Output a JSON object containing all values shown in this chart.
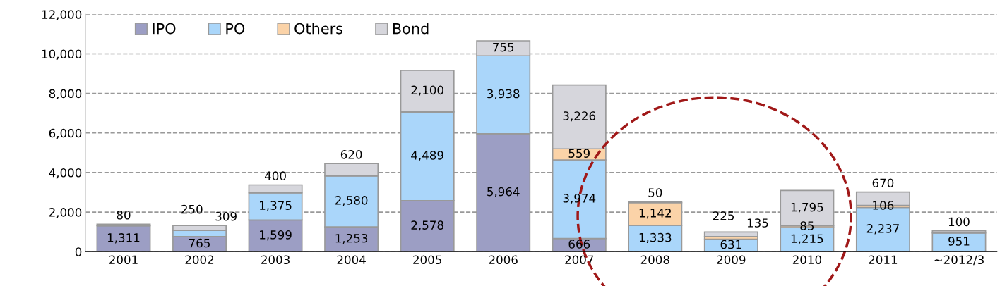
{
  "chart_data": {
    "type": "bar",
    "stacked": true,
    "categories": [
      "2001",
      "2002",
      "2003",
      "2004",
      "2005",
      "2006",
      "2007",
      "2008",
      "2009",
      "2010",
      "2011",
      "~2012/3"
    ],
    "series": [
      {
        "name": "IPO",
        "color": "#9c9ec4",
        "values": [
          1311,
          765,
          1599,
          1253,
          2578,
          5964,
          666,
          0,
          0,
          0,
          0,
          0
        ],
        "value_labels": [
          "1,311",
          "765",
          "1,599",
          "1,253",
          "2,578",
          "5,964",
          "666",
          null,
          null,
          null,
          null,
          null
        ]
      },
      {
        "name": "PO",
        "color": "#aad6fa",
        "values": [
          0,
          309,
          1375,
          2580,
          4489,
          3938,
          3974,
          1333,
          631,
          1215,
          2237,
          951
        ],
        "value_labels": [
          null,
          "309",
          "1,375",
          "2,580",
          "4,489",
          "3,938",
          "3,974",
          "1,333",
          "631",
          "1,215",
          "2,237",
          "951"
        ]
      },
      {
        "name": "Others",
        "color": "#fbd3a8",
        "values": [
          0,
          0,
          0,
          0,
          0,
          0,
          559,
          1142,
          135,
          85,
          106,
          0
        ],
        "value_labels": [
          null,
          null,
          null,
          null,
          null,
          null,
          "559",
          "1,142",
          "135",
          "85",
          "106",
          null
        ]
      },
      {
        "name": "Bond",
        "color": "#d6d6dc",
        "values": [
          80,
          250,
          400,
          620,
          2100,
          755,
          3226,
          50,
          225,
          1795,
          670,
          100
        ],
        "value_labels": [
          "80",
          "250",
          "400",
          "620",
          "2,100",
          "755",
          "3,226",
          "50",
          "225",
          "1,795",
          "670",
          "100"
        ]
      }
    ],
    "ylim": [
      0,
      12000
    ],
    "yticks": [
      {
        "value": 0,
        "label": "0"
      },
      {
        "value": 2000,
        "label": "2,000"
      },
      {
        "value": 4000,
        "label": "4,000"
      },
      {
        "value": 6000,
        "label": "6,000"
      },
      {
        "value": 8000,
        "label": "8,000"
      },
      {
        "value": 10000,
        "label": "10,000"
      },
      {
        "value": 12000,
        "label": "12,000"
      }
    ],
    "grid": "y",
    "legend": "top left"
  }
}
